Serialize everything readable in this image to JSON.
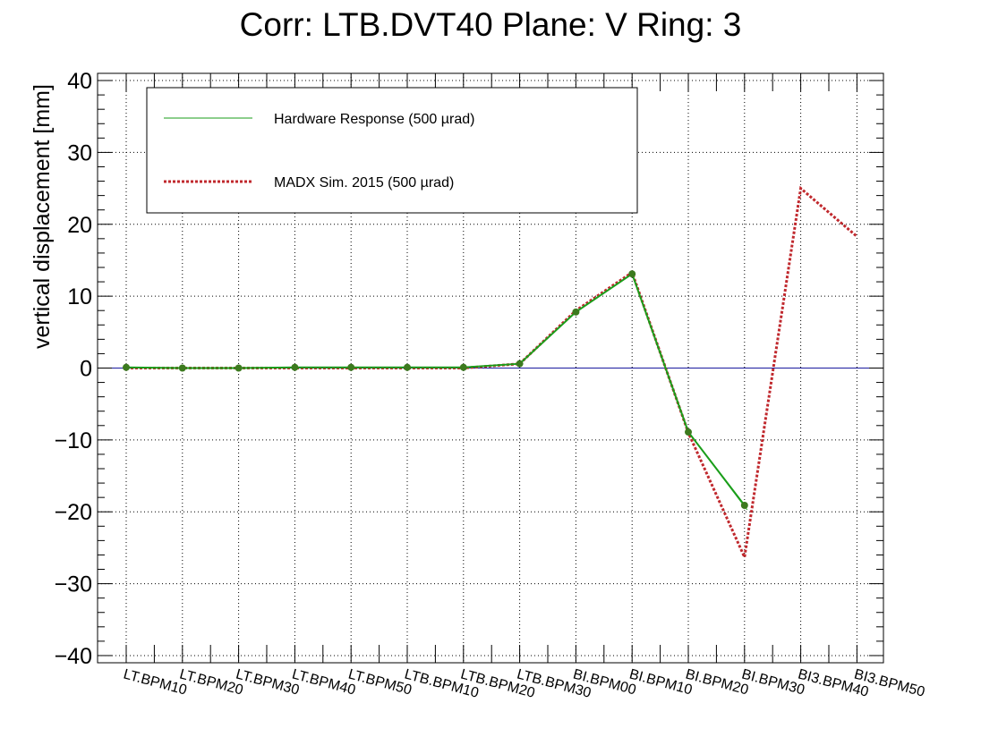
{
  "chart_data": {
    "type": "line",
    "title": "Corr: LTB.DVT40 Plane: V Ring: 3",
    "ylabel": "vertical displacement [mm]",
    "xlabel": "",
    "ylim": [
      -41,
      41
    ],
    "yticks": [
      -40,
      -30,
      -20,
      -10,
      0,
      10,
      20,
      30,
      40
    ],
    "ytick_labels": [
      "−40",
      "−30",
      "−20",
      "−10",
      "0",
      "10",
      "20",
      "30",
      "40"
    ],
    "categories": [
      "LT.BPM10",
      "LT.BPM20",
      "LT.BPM30",
      "LT.BPM40",
      "LT.BPM50",
      "LTB.BPM10",
      "LTB.BPM20",
      "LTB.BPM30",
      "BI.BPM00",
      "BI.BPM10",
      "BI.BPM20",
      "BI.BPM30",
      "BI3.BPM40",
      "BI3.BPM50"
    ],
    "grid": true,
    "reference_line": {
      "y": 0,
      "color": "#1a1a9e"
    },
    "series": [
      {
        "name": "Hardware Response (500 µrad)",
        "style": "solid",
        "color": "#1a9e1a",
        "values": [
          0.1,
          0.0,
          0.0,
          0.1,
          0.1,
          0.1,
          0.1,
          0.6,
          7.8,
          13.1,
          -8.9,
          -19.1,
          null,
          null
        ]
      },
      {
        "name": "MADX Sim. 2015 (500 µrad)",
        "style": "dotted",
        "color": "#c0282d",
        "values": [
          0.0,
          0.0,
          0.0,
          0.0,
          0.0,
          0.0,
          0.0,
          0.6,
          8.0,
          13.3,
          -9.0,
          -26.3,
          25.0,
          18.3
        ]
      }
    ],
    "legend_position": "top-left"
  }
}
